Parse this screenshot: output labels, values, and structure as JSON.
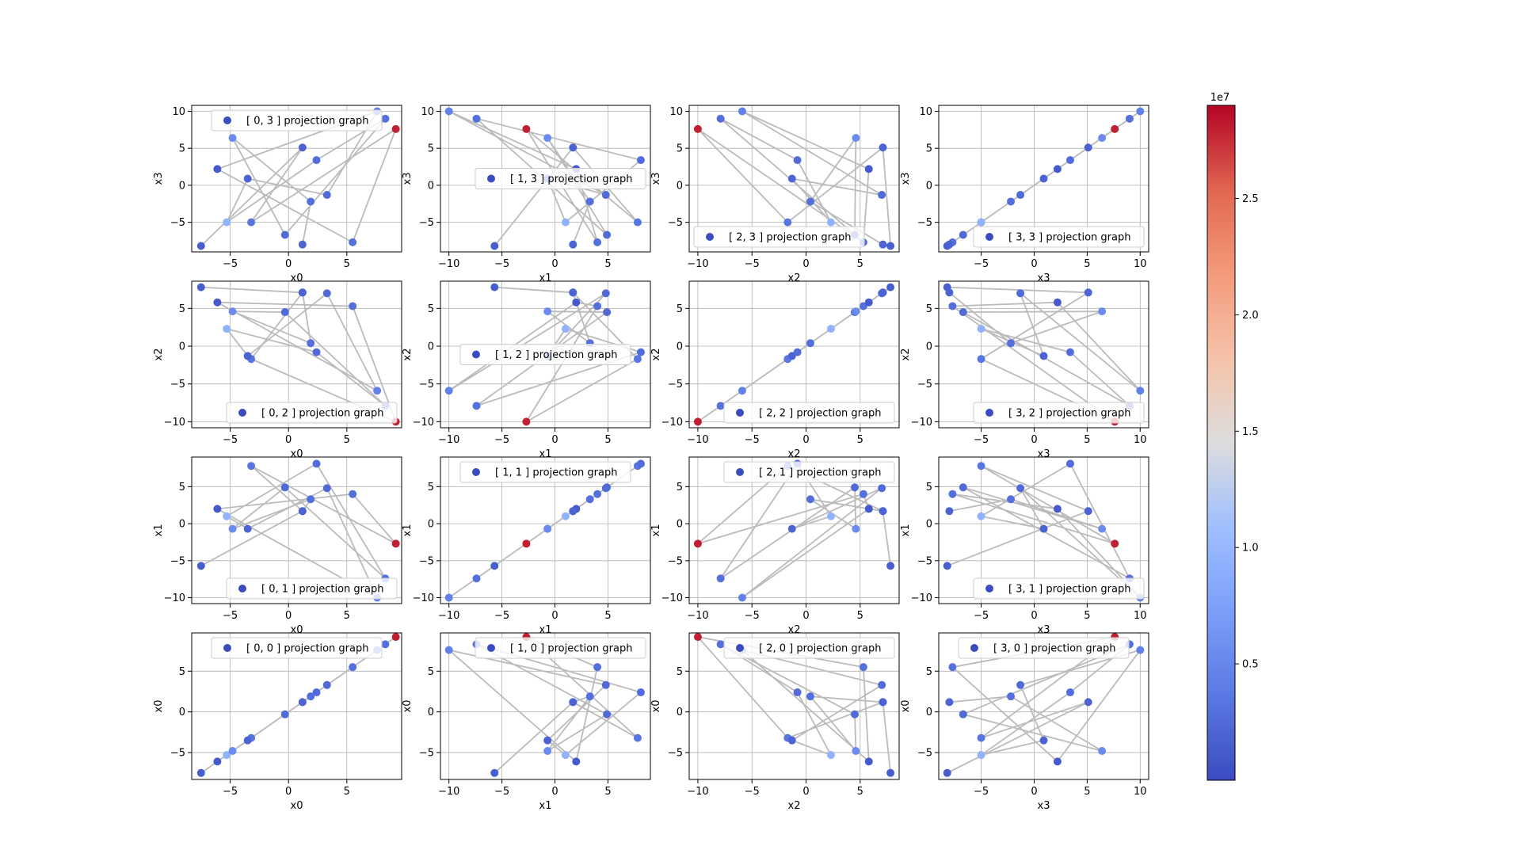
{
  "figure": {
    "colorbar": {
      "exponent_label": "1e7",
      "tick_labels": [
        "0.5",
        "1.0",
        "1.5",
        "2.0",
        "2.5"
      ],
      "tick_values": [
        0.5,
        1.0,
        1.5,
        2.0,
        2.5
      ],
      "range": [
        0,
        2.9
      ],
      "colormap": "coolwarm",
      "colormap_low": "#3b4cc0",
      "colormap_mid": "#dddddd",
      "colormap_high": "#b40426"
    }
  },
  "chart_data": {
    "type": "scatter",
    "layout": "4x4 grid",
    "variables": [
      "x0",
      "x1",
      "x2",
      "x3"
    ],
    "x_ticks": {
      "x0": [
        -5,
        0,
        5
      ],
      "x1": [
        -10,
        -5,
        0,
        5
      ],
      "x2": [
        -10,
        -5,
        0,
        5
      ],
      "x3": [
        -5,
        0,
        5,
        10
      ]
    },
    "y_ticks": {
      "x0": [
        -5,
        0,
        5
      ],
      "x1": [
        -10,
        -5,
        0,
        5
      ],
      "x2": [
        -10,
        -5,
        0,
        5
      ],
      "x3": [
        -5,
        0,
        5,
        10
      ]
    },
    "limits": {
      "x0": [
        -8.3,
        9.7
      ],
      "x1": [
        -10.8,
        9.0
      ],
      "x2": [
        -10.8,
        8.6
      ],
      "x3": [
        -9.0,
        10.8
      ]
    },
    "grid": true,
    "line_color": "#bbbbbb",
    "points": [
      {
        "x0": -7.5,
        "x1": -5.7,
        "x2": 7.8,
        "x3": -8.2,
        "c": 0.15
      },
      {
        "x0": 1.2,
        "x1": 1.7,
        "x2": 7.1,
        "x3": 5.1,
        "c": 0.2
      },
      {
        "x0": -3.2,
        "x1": 7.8,
        "x2": -1.7,
        "x3": -5.0,
        "c": 0.35
      },
      {
        "x0": 9.2,
        "x1": -2.7,
        "x2": -10.0,
        "x3": 7.6,
        "c": 2.8
      },
      {
        "x0": 5.5,
        "x1": 4.0,
        "x2": 5.3,
        "x3": -7.7,
        "c": 0.3
      },
      {
        "x0": -6.1,
        "x1": 2.0,
        "x2": 5.8,
        "x3": 2.2,
        "c": 0.12
      },
      {
        "x0": 7.6,
        "x1": -10.0,
        "x2": -5.9,
        "x3": 10.0,
        "c": 0.45
      },
      {
        "x0": 3.3,
        "x1": 4.8,
        "x2": 7.0,
        "x3": -1.3,
        "c": 0.25
      },
      {
        "x0": -3.5,
        "x1": -0.7,
        "x2": -1.3,
        "x3": 0.9,
        "c": 0.2
      },
      {
        "x0": -5.3,
        "x1": 1.0,
        "x2": 2.3,
        "x3": -5.0,
        "c": 0.95
      },
      {
        "x0": 2.4,
        "x1": 8.1,
        "x2": -0.8,
        "x3": 3.4,
        "c": 0.28
      },
      {
        "x0": 8.3,
        "x1": -7.4,
        "x2": -7.9,
        "x3": 9.0,
        "c": 0.3
      },
      {
        "x0": -0.3,
        "x1": 4.9,
        "x2": 4.5,
        "x3": -6.7,
        "c": 0.25
      },
      {
        "x0": -4.8,
        "x1": -0.7,
        "x2": 4.6,
        "x3": 6.4,
        "c": 0.55
      },
      {
        "x0": 1.9,
        "x1": 3.3,
        "x2": 0.4,
        "x3": -2.2,
        "c": 0.3
      },
      {
        "x0": 1.2,
        "x1": 1.7,
        "x2": 7.1,
        "x3": -8.0,
        "c": 0.2
      }
    ],
    "panels": [
      {
        "row": 0,
        "col": 0,
        "legend": "[ 0, 3 ] projection graph",
        "legend_loc": "upper center",
        "xvar": "x0",
        "yvar": "x3",
        "xlabel": "x0",
        "ylabel": "x3"
      },
      {
        "row": 0,
        "col": 1,
        "legend": "[ 1, 3 ] projection graph",
        "legend_loc": "center right",
        "xvar": "x1",
        "yvar": "x3",
        "xlabel": "x1",
        "ylabel": "x3"
      },
      {
        "row": 0,
        "col": 2,
        "legend": "[ 2, 3 ] projection graph",
        "legend_loc": "lower left",
        "xvar": "x2",
        "yvar": "x3",
        "xlabel": "x2",
        "ylabel": "x3"
      },
      {
        "row": 0,
        "col": 3,
        "legend": "[ 3, 3 ] projection graph",
        "legend_loc": "lower right",
        "xvar": "x3",
        "yvar": "x3",
        "xlabel": "x3",
        "ylabel": "x3"
      },
      {
        "row": 1,
        "col": 0,
        "legend": "[ 0, 2 ] projection graph",
        "legend_loc": "lower right",
        "xvar": "x0",
        "yvar": "x2",
        "xlabel": "x0",
        "ylabel": "x2"
      },
      {
        "row": 1,
        "col": 1,
        "legend": "[ 1, 2 ] projection graph",
        "legend_loc": "center",
        "xvar": "x1",
        "yvar": "x2",
        "xlabel": "x1",
        "ylabel": "x2"
      },
      {
        "row": 1,
        "col": 2,
        "legend": "[ 2, 2 ] projection graph",
        "legend_loc": "lower right",
        "xvar": "x2",
        "yvar": "x2",
        "xlabel": "x2",
        "ylabel": "x2"
      },
      {
        "row": 1,
        "col": 3,
        "legend": "[ 3, 2 ] projection graph",
        "legend_loc": "lower right",
        "xvar": "x3",
        "yvar": "x2",
        "xlabel": "x3",
        "ylabel": "x2"
      },
      {
        "row": 2,
        "col": 0,
        "legend": "[ 0, 1 ] projection graph",
        "legend_loc": "lower right",
        "xvar": "x0",
        "yvar": "x1",
        "xlabel": "x0",
        "ylabel": "x1"
      },
      {
        "row": 2,
        "col": 1,
        "legend": "[ 1, 1 ] projection graph",
        "legend_loc": "upper center",
        "xvar": "x1",
        "yvar": "x1",
        "xlabel": "x1",
        "ylabel": "x1"
      },
      {
        "row": 2,
        "col": 2,
        "legend": "[ 2, 1 ] projection graph",
        "legend_loc": "upper right",
        "xvar": "x2",
        "yvar": "x1",
        "xlabel": "x2",
        "ylabel": "x1"
      },
      {
        "row": 2,
        "col": 3,
        "legend": "[ 3, 1 ] projection graph",
        "legend_loc": "lower right",
        "xvar": "x3",
        "yvar": "x1",
        "xlabel": "x3",
        "ylabel": "x1"
      },
      {
        "row": 3,
        "col": 0,
        "legend": "[ 0, 0 ] projection graph",
        "legend_loc": "upper center",
        "xvar": "x0",
        "yvar": "x0",
        "xlabel": "x0",
        "ylabel": "x0"
      },
      {
        "row": 3,
        "col": 1,
        "legend": "[ 1, 0 ] projection graph",
        "legend_loc": "upper right",
        "xvar": "x1",
        "yvar": "x0",
        "xlabel": "x1",
        "ylabel": "x0"
      },
      {
        "row": 3,
        "col": 2,
        "legend": "[ 2, 0 ] projection graph",
        "legend_loc": "upper right",
        "xvar": "x2",
        "yvar": "x0",
        "xlabel": "x2",
        "ylabel": "x0"
      },
      {
        "row": 3,
        "col": 3,
        "legend": "[ 3, 0 ] projection graph",
        "legend_loc": "upper center",
        "xvar": "x3",
        "yvar": "x0",
        "xlabel": "x3",
        "ylabel": "x0"
      }
    ]
  }
}
